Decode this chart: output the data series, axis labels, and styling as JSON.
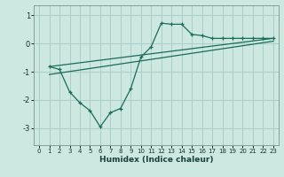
{
  "xlabel": "Humidex (Indice chaleur)",
  "bg_color": "#cce8e0",
  "grid_color": "#aacfc8",
  "line_color": "#1a6b5a",
  "xlim": [
    -0.5,
    23.5
  ],
  "ylim": [
    -3.6,
    1.35
  ],
  "yticks": [
    -3,
    -2,
    -1,
    0,
    1
  ],
  "xticks": [
    0,
    1,
    2,
    3,
    4,
    5,
    6,
    7,
    8,
    9,
    10,
    11,
    12,
    13,
    14,
    15,
    16,
    17,
    18,
    19,
    20,
    21,
    22,
    23
  ],
  "line1_x": [
    1,
    2,
    3,
    4,
    5,
    6,
    7,
    8,
    9,
    10,
    11,
    12,
    13,
    14,
    15,
    16,
    17,
    18,
    19,
    20,
    21,
    22,
    23
  ],
  "line1_y": [
    -0.82,
    -0.92,
    -1.72,
    -2.1,
    -2.38,
    -2.95,
    -2.45,
    -2.3,
    -1.6,
    -0.48,
    -0.12,
    0.72,
    0.68,
    0.68,
    0.32,
    0.28,
    0.18,
    0.18,
    0.18,
    0.18,
    0.18,
    0.18,
    0.18
  ],
  "trend1_x": [
    1,
    23
  ],
  "trend1_y": [
    -0.82,
    0.18
  ],
  "trend2_x": [
    1,
    23
  ],
  "trend2_y": [
    -1.1,
    0.08
  ]
}
